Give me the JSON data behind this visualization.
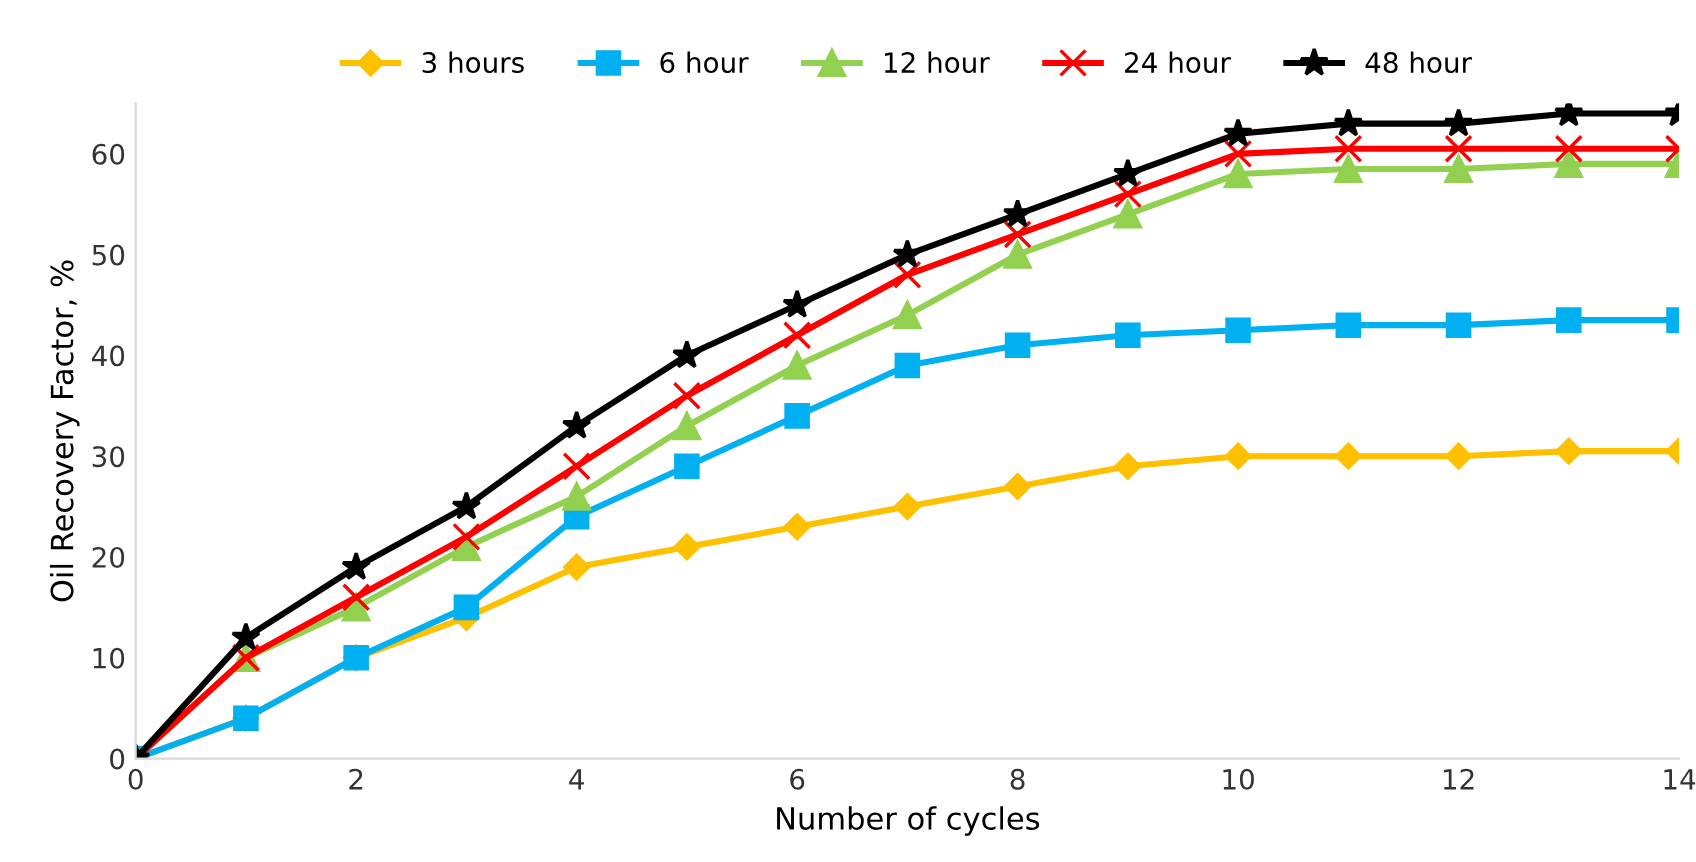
{
  "chart_data": {
    "type": "line",
    "xlabel": "Number of cycles",
    "ylabel": "Oil Recovery Factor, %",
    "x": [
      0,
      1,
      2,
      3,
      4,
      5,
      6,
      7,
      8,
      9,
      10,
      11,
      12,
      13,
      14
    ],
    "xlim": [
      0,
      14
    ],
    "xticks": [
      0,
      2,
      4,
      6,
      8,
      10,
      12,
      14
    ],
    "ylim": [
      0,
      65
    ],
    "yticks": [
      0,
      10,
      20,
      30,
      40,
      50,
      60
    ],
    "grid": false,
    "legend": "top",
    "line_style": "solid",
    "series": [
      {
        "name": "3 hours",
        "color": "#ffc000",
        "marker": "diamond",
        "values": [
          0,
          4,
          10,
          14,
          19,
          21,
          23,
          25,
          27,
          29,
          30,
          30,
          30,
          30.5,
          30.5
        ]
      },
      {
        "name": "6 hour",
        "color": "#00b0f0",
        "marker": "square",
        "values": [
          0,
          4,
          10,
          15,
          24,
          29,
          34,
          39,
          41,
          42,
          42.5,
          43,
          43,
          43.5,
          43.5
        ]
      },
      {
        "name": "12 hour",
        "color": "#92d050",
        "marker": "triangle",
        "values": [
          0,
          10,
          15,
          21,
          26,
          33,
          39,
          44,
          50,
          54,
          58,
          58.5,
          58.5,
          59,
          59
        ]
      },
      {
        "name": "24 hour",
        "color": "#ff0000",
        "marker": "cross",
        "values": [
          0,
          10,
          16,
          22,
          29,
          36,
          42,
          48,
          52,
          56,
          60,
          60.5,
          60.5,
          60.5,
          60.5
        ]
      },
      {
        "name": "48 hour",
        "color": "#000000",
        "marker": "star",
        "values": [
          0,
          12,
          19,
          25,
          33,
          40,
          45,
          50,
          54,
          58,
          62,
          63,
          63,
          64,
          64
        ]
      }
    ]
  }
}
